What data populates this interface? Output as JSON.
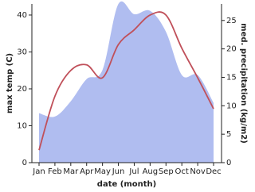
{
  "chart_data": {
    "type": "area-line",
    "categories": [
      "Jan",
      "Feb",
      "Mar",
      "Apr",
      "May",
      "Jun",
      "Jul",
      "Aug",
      "Sep",
      "Oct",
      "Nov",
      "Dec"
    ],
    "x_label": "date (month)",
    "y_label": "max temp (C)",
    "y2_label": "med. precipitation (kg/m2)",
    "series": [
      {
        "name": "med. precipitation",
        "color": "#b0bdf0",
        "axis": "y2",
        "kind": "area",
        "values": [
          8.7,
          8.1,
          10.8,
          14.7,
          16.3,
          27.9,
          26.1,
          26.7,
          23,
          15.4,
          15.4,
          10.5
        ]
      },
      {
        "name": "max temp",
        "color": "#c0505a",
        "axis": "y",
        "kind": "line",
        "values": [
          3.4,
          18,
          25,
          26.5,
          23,
          32,
          36,
          40,
          40,
          31,
          23,
          14.6
        ]
      }
    ],
    "ylim": [
      0,
      43
    ],
    "yticks": [
      0,
      10,
      20,
      30,
      40
    ],
    "y2lim": [
      0,
      27.9
    ],
    "y2ticks": [
      0,
      5,
      10,
      15,
      20,
      25
    ]
  }
}
